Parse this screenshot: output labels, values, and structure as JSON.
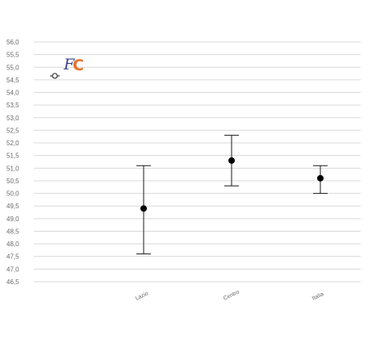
{
  "chart_data": {
    "type": "scatter",
    "subtype": "error-bar",
    "title": "",
    "xlabel": "",
    "ylabel": "",
    "ylim": [
      46.5,
      56.0
    ],
    "ytick_step": 0.5,
    "ytick_labels": [
      "46,5",
      "47,0",
      "47,5",
      "48,0",
      "48,5",
      "49,0",
      "49,5",
      "50,0",
      "50,5",
      "51,0",
      "51,5",
      "52,0",
      "52,5",
      "53,0",
      "53,5",
      "54,0",
      "54,5",
      "55,0",
      "55,5",
      "56,0"
    ],
    "grid": true,
    "legend": "top-left",
    "categories": [
      "Lazio",
      "Centro",
      "Italia"
    ],
    "series": [
      {
        "values": [
          49.4,
          51.3,
          50.6
        ],
        "lower": [
          47.6,
          50.3,
          50.0
        ],
        "upper": [
          51.1,
          52.3,
          51.1
        ],
        "color": "#000000"
      }
    ]
  },
  "logo": {
    "text_f": "F",
    "text_c": "C",
    "colors": [
      "#3b3f8c",
      "#e8702a"
    ]
  }
}
